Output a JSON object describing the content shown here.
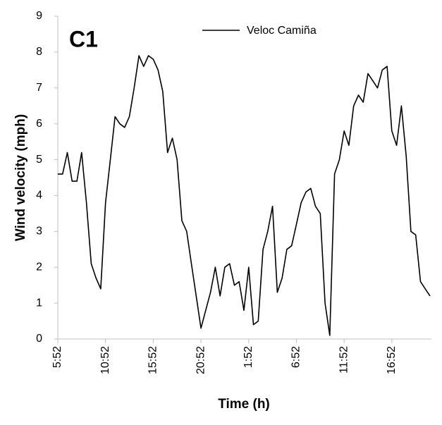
{
  "chart_data": {
    "type": "line",
    "title": "C1",
    "x_label": "Time (h)",
    "y_label": "Wind velocity  (mph)",
    "categories": [
      "5:52",
      null,
      null,
      null,
      null,
      null,
      null,
      null,
      null,
      null,
      "10:52",
      null,
      null,
      null,
      null,
      null,
      null,
      null,
      null,
      null,
      "15:52",
      null,
      null,
      null,
      null,
      null,
      null,
      null,
      null,
      null,
      "20:52",
      null,
      null,
      null,
      null,
      null,
      null,
      null,
      null,
      null,
      "1:52",
      null,
      null,
      null,
      null,
      null,
      null,
      null,
      null,
      null,
      "6:52",
      null,
      null,
      null,
      null,
      null,
      null,
      null,
      null,
      null,
      "11:52",
      null,
      null,
      null,
      null,
      null,
      null,
      null,
      null,
      null,
      "16:52",
      null,
      null,
      null,
      null,
      null,
      null,
      null,
      null
    ],
    "series": [
      {
        "name": "Veloc Camiña",
        "color": "#000000",
        "values": [
          4.6,
          4.6,
          5.2,
          4.4,
          4.4,
          5.2,
          3.8,
          2.1,
          1.7,
          1.4,
          3.8,
          5.0,
          6.2,
          6.0,
          5.9,
          6.2,
          7.0,
          7.9,
          7.6,
          7.9,
          7.8,
          7.5,
          6.9,
          5.2,
          5.6,
          5.0,
          3.3,
          3.0,
          2.1,
          1.2,
          0.3,
          0.8,
          1.3,
          2.0,
          1.2,
          2.0,
          2.1,
          1.5,
          1.6,
          0.8,
          2.0,
          0.4,
          0.5,
          2.5,
          3.0,
          3.7,
          1.3,
          1.7,
          2.5,
          2.6,
          3.2,
          3.8,
          4.1,
          4.2,
          3.7,
          3.5,
          1.0,
          0.1,
          4.6,
          5.0,
          5.8,
          5.4,
          6.5,
          6.8,
          6.6,
          7.4,
          7.2,
          7.0,
          7.5,
          7.6,
          5.8,
          5.4,
          6.5,
          5.1,
          3.0,
          2.9,
          1.6,
          1.4,
          1.2
        ]
      }
    ],
    "ylim": [
      0,
      9
    ],
    "yticks": [
      0,
      1,
      2,
      3,
      4,
      5,
      6,
      7,
      8,
      9
    ],
    "grid": false,
    "legend": "top"
  }
}
